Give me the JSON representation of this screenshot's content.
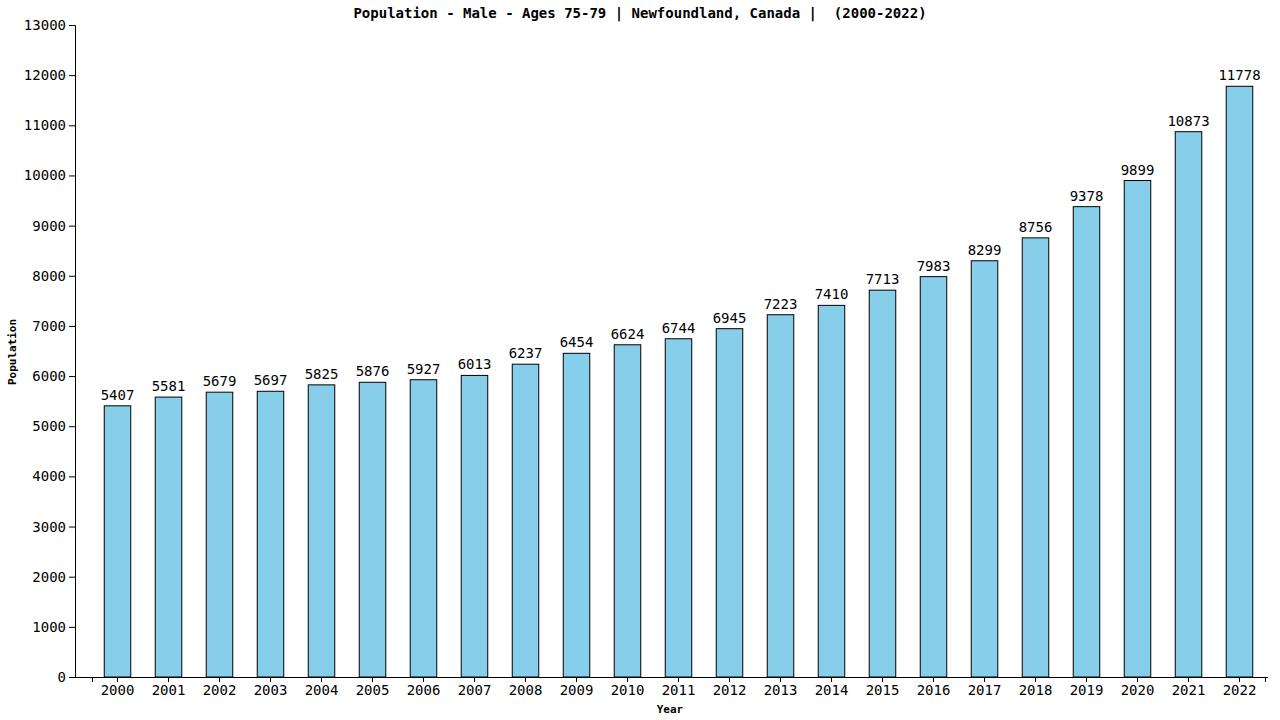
{
  "chart_data": {
    "type": "bar",
    "title": "Population - Male - Ages 75-79 | Newfoundland, Canada |  (2000-2022)",
    "x_label": "Year",
    "y_label": "Population",
    "categories": [
      "2000",
      "2001",
      "2002",
      "2003",
      "2004",
      "2005",
      "2006",
      "2007",
      "2008",
      "2009",
      "2010",
      "2011",
      "2012",
      "2013",
      "2014",
      "2015",
      "2016",
      "2017",
      "2018",
      "2019",
      "2020",
      "2021",
      "2022"
    ],
    "values": [
      5407,
      5581,
      5679,
      5697,
      5825,
      5876,
      5927,
      6013,
      6237,
      6454,
      6624,
      6744,
      6945,
      7223,
      7410,
      7713,
      7983,
      8299,
      8756,
      9378,
      9899,
      10873,
      11778
    ],
    "color": "#87ceeb",
    "ylim": [
      0,
      13000
    ],
    "yticks": [
      0,
      1000,
      2000,
      3000,
      4000,
      5000,
      6000,
      7000,
      8000,
      9000,
      10000,
      11000,
      12000,
      13000
    ],
    "grid": false,
    "data_labels": true
  }
}
